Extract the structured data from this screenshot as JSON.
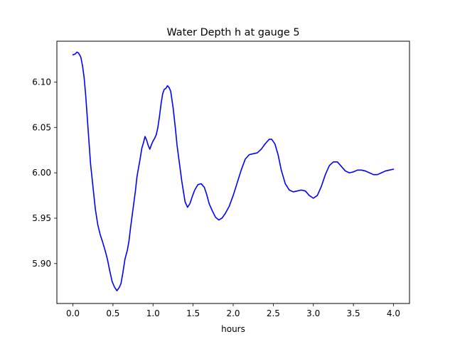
{
  "chart_data": {
    "type": "line",
    "title": "Water Depth h at gauge 5",
    "xlabel": "hours",
    "ylabel": "",
    "xlim": [
      -0.2,
      4.2
    ],
    "ylim": [
      5.856,
      6.145
    ],
    "xticks": [
      0.0,
      0.5,
      1.0,
      1.5,
      2.0,
      2.5,
      3.0,
      3.5,
      4.0
    ],
    "xtick_labels": [
      "0.0",
      "0.5",
      "1.0",
      "1.5",
      "2.0",
      "2.5",
      "3.0",
      "3.5",
      "4.0"
    ],
    "yticks": [
      5.9,
      5.95,
      6.0,
      6.05,
      6.1
    ],
    "ytick_labels": [
      "5.90",
      "5.95",
      "6.00",
      "6.05",
      "6.10"
    ],
    "grid": false,
    "line_color": "#0000ff",
    "series": [
      {
        "x": [
          0.0,
          0.03,
          0.05,
          0.07,
          0.09,
          0.1,
          0.12,
          0.14,
          0.16,
          0.18,
          0.2,
          0.22,
          0.25,
          0.28,
          0.31,
          0.34,
          0.37,
          0.4,
          0.43,
          0.46,
          0.49,
          0.52,
          0.55,
          0.58,
          0.6,
          0.62,
          0.65,
          0.68,
          0.7,
          0.72,
          0.75,
          0.78,
          0.8,
          0.82,
          0.84,
          0.86,
          0.88,
          0.9,
          0.92,
          0.94,
          0.96,
          0.98,
          1.0,
          1.02,
          1.04,
          1.06,
          1.08,
          1.1,
          1.12,
          1.14,
          1.16,
          1.18,
          1.2,
          1.22,
          1.25,
          1.28,
          1.3,
          1.33,
          1.36,
          1.4,
          1.43,
          1.46,
          1.49,
          1.52,
          1.56,
          1.6,
          1.64,
          1.67,
          1.7,
          1.74,
          1.78,
          1.82,
          1.86,
          1.9,
          1.95,
          2.0,
          2.05,
          2.1,
          2.15,
          2.2,
          2.25,
          2.3,
          2.35,
          2.4,
          2.45,
          2.48,
          2.52,
          2.56,
          2.6,
          2.65,
          2.7,
          2.75,
          2.8,
          2.85,
          2.9,
          2.95,
          3.0,
          3.05,
          3.1,
          3.15,
          3.2,
          3.25,
          3.3,
          3.35,
          3.4,
          3.45,
          3.5,
          3.55,
          3.6,
          3.65,
          3.7,
          3.75,
          3.8,
          3.85,
          3.9,
          3.95,
          4.0
        ],
        "y": [
          6.13,
          6.131,
          6.133,
          6.132,
          6.129,
          6.127,
          6.118,
          6.105,
          6.085,
          6.06,
          6.035,
          6.01,
          5.985,
          5.96,
          5.943,
          5.932,
          5.924,
          5.915,
          5.905,
          5.892,
          5.88,
          5.874,
          5.87,
          5.874,
          5.878,
          5.888,
          5.905,
          5.915,
          5.925,
          5.94,
          5.96,
          5.98,
          5.996,
          6.006,
          6.016,
          6.027,
          6.033,
          6.04,
          6.036,
          6.03,
          6.026,
          6.031,
          6.035,
          6.038,
          6.042,
          6.05,
          6.062,
          6.076,
          6.087,
          6.092,
          6.093,
          6.096,
          6.094,
          6.09,
          6.072,
          6.048,
          6.03,
          6.01,
          5.99,
          5.968,
          5.962,
          5.966,
          5.974,
          5.981,
          5.987,
          5.988,
          5.984,
          5.976,
          5.966,
          5.958,
          5.951,
          5.948,
          5.95,
          5.955,
          5.963,
          5.975,
          5.989,
          6.003,
          6.015,
          6.02,
          6.021,
          6.022,
          6.026,
          6.032,
          6.037,
          6.037,
          6.032,
          6.02,
          6.003,
          5.988,
          5.981,
          5.979,
          5.98,
          5.981,
          5.98,
          5.975,
          5.972,
          5.975,
          5.985,
          5.998,
          6.008,
          6.012,
          6.012,
          6.007,
          6.002,
          6.0,
          6.001,
          6.003,
          6.003,
          6.002,
          6.0,
          5.998,
          5.998,
          6.0,
          6.002,
          6.003,
          6.004
        ]
      }
    ]
  }
}
